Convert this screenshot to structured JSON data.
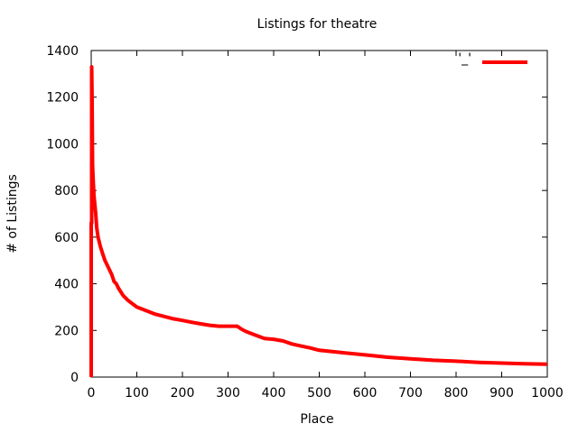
{
  "chart_data": {
    "type": "line",
    "title": "Listings for theatre",
    "xlabel": "Place",
    "ylabel": "# of Listings",
    "xlim": [
      0,
      1000
    ],
    "ylim": [
      0,
      1400
    ],
    "xticks": [
      0,
      100,
      200,
      300,
      400,
      500,
      600,
      700,
      800,
      900,
      1000
    ],
    "yticks": [
      0,
      200,
      400,
      600,
      800,
      1000,
      1200,
      1400
    ],
    "grid": false,
    "legend": {
      "position": "top-right",
      "label": "'_'"
    },
    "series": [
      {
        "color": "#ff0000",
        "x": [
          0,
          0,
          1,
          1,
          2,
          3,
          4,
          5,
          6,
          8,
          10,
          12,
          15,
          20,
          25,
          30,
          35,
          40,
          45,
          50,
          55,
          60,
          70,
          80,
          90,
          100,
          120,
          140,
          160,
          180,
          200,
          220,
          240,
          260,
          280,
          300,
          320,
          330,
          340,
          360,
          380,
          400,
          420,
          440,
          460,
          480,
          500,
          550,
          600,
          650,
          700,
          750,
          800,
          850,
          900,
          950,
          1000
        ],
        "y": [
          0,
          660,
          660,
          1330,
          1180,
          910,
          860,
          820,
          780,
          740,
          700,
          640,
          600,
          560,
          530,
          500,
          480,
          460,
          440,
          410,
          400,
          380,
          350,
          330,
          315,
          300,
          285,
          270,
          260,
          250,
          243,
          235,
          228,
          222,
          218,
          218,
          218,
          205,
          195,
          180,
          165,
          162,
          155,
          142,
          133,
          125,
          115,
          105,
          95,
          85,
          78,
          72,
          68,
          63,
          60,
          57,
          55
        ]
      }
    ]
  }
}
